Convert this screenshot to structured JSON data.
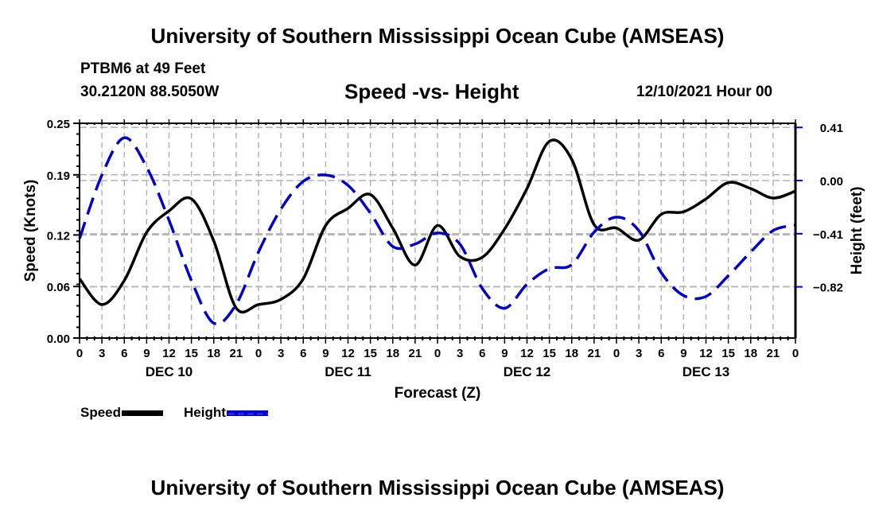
{
  "header": {
    "title": "University of Southern Mississippi Ocean Cube (AMSEAS)",
    "station": "PTBM6 at 49 Feet",
    "coordinates": "30.2120N  88.5050W",
    "chart_title": "Speed -vs- Height",
    "run_date": "12/10/2021 Hour 00"
  },
  "footer": {
    "title": "University of Southern Mississippi Ocean Cube (AMSEAS)"
  },
  "legend": {
    "speed_label": "Speed",
    "height_label": "Height"
  },
  "colors": {
    "speed": "#000000",
    "height": "#0000cc",
    "grid": "#b4b4b4"
  },
  "chart_data": {
    "type": "line",
    "title": "Speed -vs- Height",
    "xlabel": "Forecast (Z)",
    "ylabel": "Speed (Knots)",
    "y2label": "Height (feet)",
    "x_hours": [
      0,
      3,
      6,
      9,
      12,
      15,
      18,
      21,
      24,
      27,
      30,
      33,
      36,
      39,
      42,
      45,
      48,
      51,
      54,
      57,
      60,
      63,
      66,
      69,
      72,
      75,
      78,
      81,
      84,
      87,
      90,
      93,
      96
    ],
    "x_tick_labels": [
      "0",
      "3",
      "6",
      "9",
      "12",
      "15",
      "18",
      "21",
      "0",
      "3",
      "6",
      "9",
      "12",
      "15",
      "18",
      "21",
      "0",
      "3",
      "6",
      "9",
      "12",
      "15",
      "18",
      "21",
      "0",
      "3",
      "6",
      "9",
      "12",
      "15",
      "18",
      "21",
      "0"
    ],
    "day_labels": [
      {
        "label": "DEC 10",
        "center_hour": 12
      },
      {
        "label": "DEC 11",
        "center_hour": 36
      },
      {
        "label": "DEC 12",
        "center_hour": 60
      },
      {
        "label": "DEC 13",
        "center_hour": 84
      }
    ],
    "xlim": [
      0,
      96
    ],
    "ylim": [
      0.0,
      0.25
    ],
    "y_ticks": [
      0.0,
      0.06,
      0.12,
      0.19,
      0.25
    ],
    "y_tick_labels": [
      "0.00",
      "0.06",
      "0.12",
      "0.19",
      "0.25"
    ],
    "y2lim": [
      -1.215,
      0.442
    ],
    "y2_ticks": [
      0.41,
      0.0,
      -0.41,
      -0.82
    ],
    "y2_tick_labels": [
      "0.41",
      "0.00",
      "−0.41",
      "−0.82"
    ],
    "grid": true,
    "legend_position": "bottom-left",
    "series": [
      {
        "name": "Speed",
        "axis": "left",
        "style": "solid",
        "values": [
          0.069,
          0.039,
          0.067,
          0.123,
          0.148,
          0.162,
          0.113,
          0.035,
          0.039,
          0.045,
          0.069,
          0.131,
          0.151,
          0.167,
          0.128,
          0.085,
          0.131,
          0.095,
          0.094,
          0.127,
          0.174,
          0.229,
          0.208,
          0.132,
          0.128,
          0.114,
          0.144,
          0.147,
          0.162,
          0.181,
          0.174,
          0.163,
          0.171
        ]
      },
      {
        "name": "Height",
        "axis": "right",
        "style": "dashed",
        "values": [
          -0.447,
          0.043,
          0.33,
          0.104,
          -0.306,
          -0.771,
          -1.1,
          -0.955,
          -0.551,
          -0.22,
          -0.006,
          0.043,
          -0.037,
          -0.251,
          -0.508,
          -0.49,
          -0.404,
          -0.49,
          -0.832,
          -0.985,
          -0.8,
          -0.679,
          -0.649,
          -0.398,
          -0.282,
          -0.386,
          -0.71,
          -0.887,
          -0.894,
          -0.734,
          -0.551,
          -0.386,
          -0.343
        ]
      }
    ]
  }
}
